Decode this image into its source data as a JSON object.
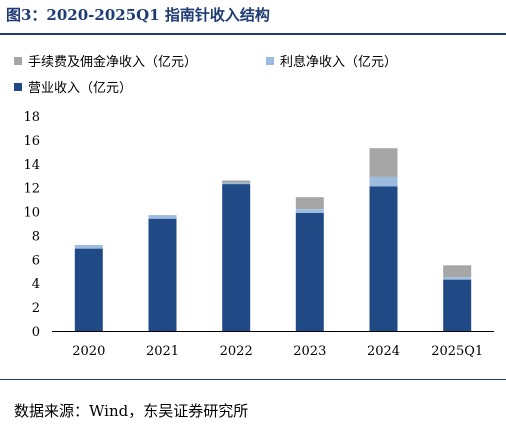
{
  "figure": {
    "title": "图3：2020-2025Q1 指南针收入结构",
    "source": "数据来源：Wind，东吴证券研究所"
  },
  "chart_data": {
    "type": "bar",
    "stacked": true,
    "categories": [
      "2020",
      "2021",
      "2022",
      "2023",
      "2024",
      "2025Q1"
    ],
    "series": [
      {
        "name": "营业收入（亿元）",
        "color": "#1f4a86",
        "values": [
          6.9,
          9.4,
          12.3,
          9.9,
          12.1,
          4.3
        ]
      },
      {
        "name": "利息净收入（亿元）",
        "color": "#9bbbe0",
        "values": [
          0.3,
          0.3,
          0.1,
          0.3,
          0.8,
          0.2
        ]
      },
      {
        "name": "手续费及佣金净收入（亿元）",
        "color": "#a6a6a6",
        "values": [
          0.0,
          0.0,
          0.2,
          1.0,
          2.4,
          1.0
        ]
      }
    ],
    "legend_order": [
      2,
      1,
      0
    ],
    "legend_position": "top-left",
    "ylim": [
      0,
      18
    ],
    "yticks": [
      0,
      2,
      4,
      6,
      8,
      10,
      12,
      14,
      16,
      18
    ],
    "grid": false
  }
}
